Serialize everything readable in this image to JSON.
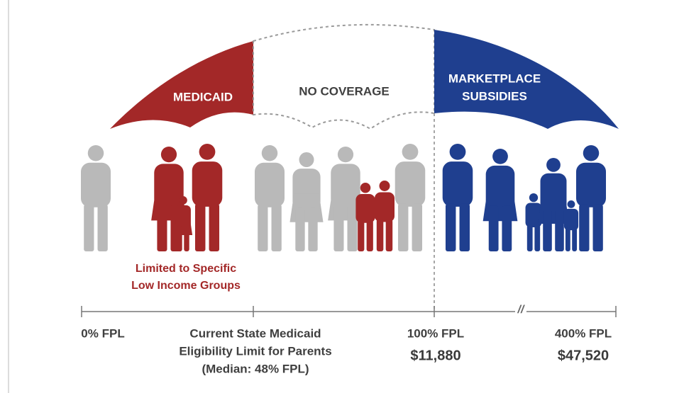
{
  "umbrella": {
    "medicaid": "MEDICAID",
    "no_coverage": "NO COVERAGE",
    "marketplace": [
      "MARKETPLACE",
      "SUBSIDIES"
    ]
  },
  "note": [
    "Limited to Specific",
    "Low Income Groups"
  ],
  "axis": {
    "break": "//",
    "labels": [
      {
        "text": [
          "0% FPL"
        ]
      },
      {
        "text": [
          "Current State Medicaid",
          "Eligibility Limit for Parents",
          "(Median: 48% FPL)"
        ]
      },
      {
        "text": [
          "100% FPL"
        ],
        "amount": "$11,880"
      },
      {
        "text": [
          "400% FPL"
        ],
        "amount": "$47,520"
      }
    ]
  }
}
